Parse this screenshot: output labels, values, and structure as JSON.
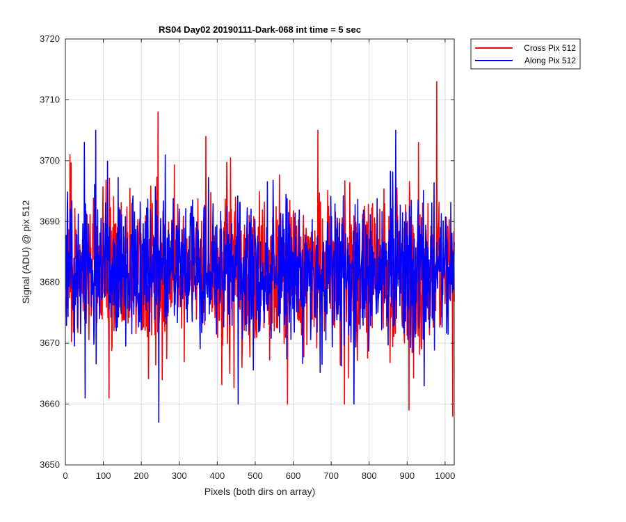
{
  "chart_data": {
    "type": "line",
    "title": "RS04 Day02 20190111-Dark-068 int time = 5 sec",
    "xlabel": "Pixels (both dirs on array)",
    "ylabel": "Signal (ADU) @ pix 512",
    "xlim": [
      0,
      1024
    ],
    "ylim": [
      3650,
      3720
    ],
    "xticks": [
      0,
      100,
      200,
      300,
      400,
      500,
      600,
      700,
      800,
      900,
      1000
    ],
    "yticks": [
      3650,
      3660,
      3670,
      3680,
      3690,
      3700,
      3710,
      3720
    ],
    "grid": true,
    "legend_position": "outside-top-right",
    "colors": {
      "cross": "#ff0000",
      "along": "#0000ff",
      "grid": "#dcdcdc",
      "axis": "#262626"
    },
    "series": [
      {
        "name": "Cross Pix 512",
        "color": "#ff0000",
        "x_range": [
          1,
          1024
        ],
        "n_points": 1024,
        "mean": 3682,
        "std": 6.5,
        "peaks": [
          {
            "x": 12,
            "y": 3701
          },
          {
            "x": 115,
            "y": 3661
          },
          {
            "x": 244,
            "y": 3708
          },
          {
            "x": 255,
            "y": 3664
          },
          {
            "x": 370,
            "y": 3704
          },
          {
            "x": 465,
            "y": 3666
          },
          {
            "x": 585,
            "y": 3660
          },
          {
            "x": 665,
            "y": 3705
          },
          {
            "x": 735,
            "y": 3660
          },
          {
            "x": 905,
            "y": 3659
          },
          {
            "x": 978,
            "y": 3713
          },
          {
            "x": 1020,
            "y": 3658
          }
        ]
      },
      {
        "name": "Along Pix 512",
        "color": "#0000ff",
        "x_range": [
          1,
          1024
        ],
        "n_points": 1024,
        "mean": 3682,
        "std": 6.0,
        "peaks": [
          {
            "x": 50,
            "y": 3703
          },
          {
            "x": 52,
            "y": 3661
          },
          {
            "x": 80,
            "y": 3705
          },
          {
            "x": 246,
            "y": 3657
          },
          {
            "x": 455,
            "y": 3660
          },
          {
            "x": 760,
            "y": 3660
          },
          {
            "x": 870,
            "y": 3705
          },
          {
            "x": 945,
            "y": 3663
          }
        ]
      }
    ]
  }
}
